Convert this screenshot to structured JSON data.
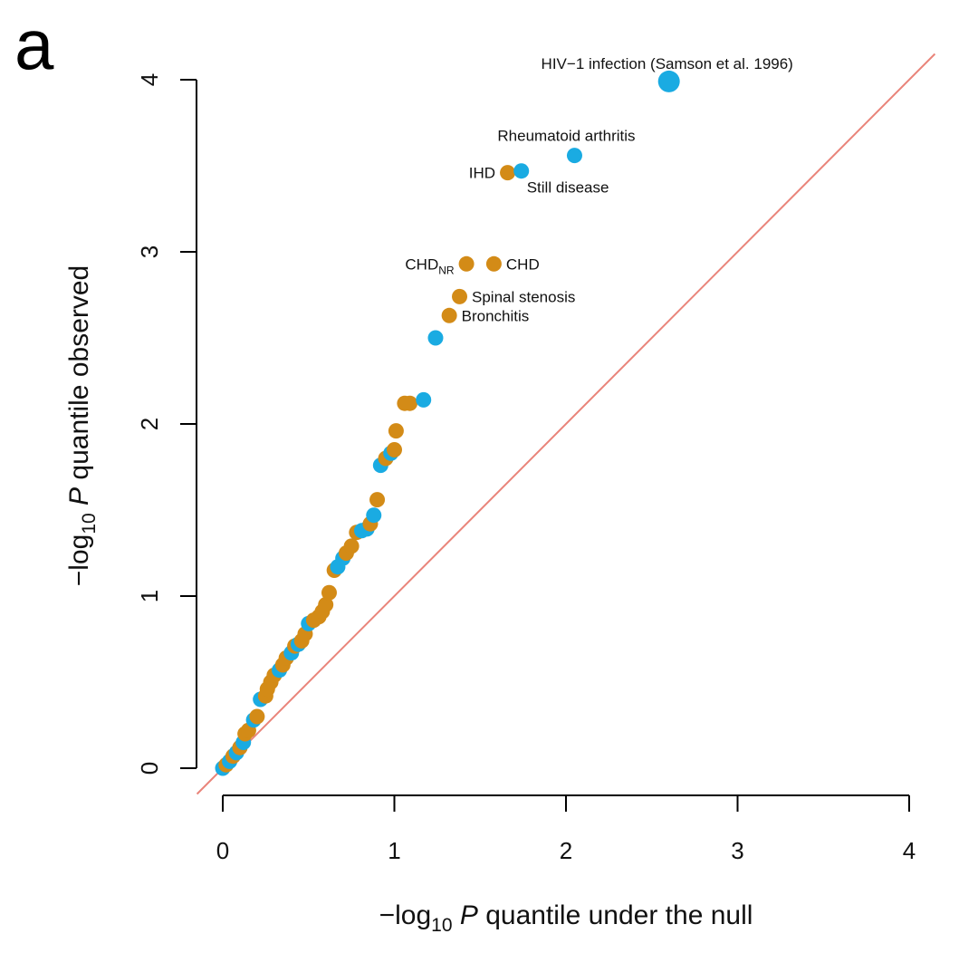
{
  "panel_label": "a",
  "chart_data": {
    "type": "scatter",
    "title": "",
    "xlabel": {
      "prefix": "−log",
      "sub": "10",
      "var": "P",
      "rest": "quantile under the null"
    },
    "ylabel": {
      "prefix": "−log",
      "sub": "10",
      "var": "P",
      "rest": "quantile observed"
    },
    "xlim": [
      0,
      4
    ],
    "ylim": [
      0,
      4
    ],
    "xticks": [
      0,
      1,
      2,
      3,
      4
    ],
    "yticks": [
      0,
      1,
      2,
      3,
      4
    ],
    "reference_line": {
      "type": "identity",
      "color": "#e9847a"
    },
    "colors": {
      "blue": "#1aabe2",
      "orange": "#d38b17"
    },
    "points": [
      {
        "x": 0.0,
        "y": 0.0,
        "c": "blue"
      },
      {
        "x": 0.02,
        "y": 0.02,
        "c": "orange"
      },
      {
        "x": 0.04,
        "y": 0.04,
        "c": "blue"
      },
      {
        "x": 0.06,
        "y": 0.07,
        "c": "orange"
      },
      {
        "x": 0.08,
        "y": 0.09,
        "c": "blue"
      },
      {
        "x": 0.1,
        "y": 0.12,
        "c": "orange"
      },
      {
        "x": 0.12,
        "y": 0.15,
        "c": "blue"
      },
      {
        "x": 0.13,
        "y": 0.2,
        "c": "orange"
      },
      {
        "x": 0.15,
        "y": 0.22,
        "c": "orange"
      },
      {
        "x": 0.18,
        "y": 0.28,
        "c": "blue"
      },
      {
        "x": 0.2,
        "y": 0.3,
        "c": "orange"
      },
      {
        "x": 0.22,
        "y": 0.4,
        "c": "blue"
      },
      {
        "x": 0.25,
        "y": 0.42,
        "c": "orange"
      },
      {
        "x": 0.26,
        "y": 0.46,
        "c": "orange"
      },
      {
        "x": 0.28,
        "y": 0.5,
        "c": "orange"
      },
      {
        "x": 0.3,
        "y": 0.54,
        "c": "orange"
      },
      {
        "x": 0.33,
        "y": 0.57,
        "c": "blue"
      },
      {
        "x": 0.35,
        "y": 0.6,
        "c": "orange"
      },
      {
        "x": 0.37,
        "y": 0.64,
        "c": "orange"
      },
      {
        "x": 0.4,
        "y": 0.67,
        "c": "blue"
      },
      {
        "x": 0.42,
        "y": 0.71,
        "c": "orange"
      },
      {
        "x": 0.44,
        "y": 0.72,
        "c": "blue"
      },
      {
        "x": 0.46,
        "y": 0.74,
        "c": "orange"
      },
      {
        "x": 0.48,
        "y": 0.78,
        "c": "orange"
      },
      {
        "x": 0.5,
        "y": 0.84,
        "c": "blue"
      },
      {
        "x": 0.53,
        "y": 0.86,
        "c": "orange"
      },
      {
        "x": 0.56,
        "y": 0.88,
        "c": "orange"
      },
      {
        "x": 0.58,
        "y": 0.91,
        "c": "orange"
      },
      {
        "x": 0.6,
        "y": 0.95,
        "c": "orange"
      },
      {
        "x": 0.62,
        "y": 1.02,
        "c": "orange"
      },
      {
        "x": 0.65,
        "y": 1.15,
        "c": "orange"
      },
      {
        "x": 0.67,
        "y": 1.17,
        "c": "blue"
      },
      {
        "x": 0.7,
        "y": 1.22,
        "c": "blue"
      },
      {
        "x": 0.72,
        "y": 1.25,
        "c": "orange"
      },
      {
        "x": 0.75,
        "y": 1.29,
        "c": "orange"
      },
      {
        "x": 0.78,
        "y": 1.37,
        "c": "orange"
      },
      {
        "x": 0.81,
        "y": 1.38,
        "c": "blue"
      },
      {
        "x": 0.84,
        "y": 1.39,
        "c": "blue"
      },
      {
        "x": 0.86,
        "y": 1.42,
        "c": "orange"
      },
      {
        "x": 0.88,
        "y": 1.47,
        "c": "blue"
      },
      {
        "x": 0.9,
        "y": 1.56,
        "c": "orange"
      },
      {
        "x": 0.92,
        "y": 1.76,
        "c": "blue"
      },
      {
        "x": 0.95,
        "y": 1.8,
        "c": "orange"
      },
      {
        "x": 0.98,
        "y": 1.83,
        "c": "blue"
      },
      {
        "x": 1.0,
        "y": 1.85,
        "c": "orange"
      },
      {
        "x": 1.01,
        "y": 1.96,
        "c": "orange"
      },
      {
        "x": 1.06,
        "y": 2.12,
        "c": "orange"
      },
      {
        "x": 1.09,
        "y": 2.12,
        "c": "orange"
      },
      {
        "x": 1.17,
        "y": 2.14,
        "c": "blue"
      },
      {
        "x": 1.24,
        "y": 2.5,
        "c": "blue"
      },
      {
        "x": 1.32,
        "y": 2.63,
        "c": "orange",
        "label": "Bronchitis",
        "lpos": "right"
      },
      {
        "x": 1.38,
        "y": 2.74,
        "c": "orange",
        "label": "Spinal stenosis",
        "lpos": "right"
      },
      {
        "x": 1.42,
        "y": 2.93,
        "c": "orange",
        "label": "CHD",
        "sub": "NR",
        "lpos": "left"
      },
      {
        "x": 1.58,
        "y": 2.93,
        "c": "orange",
        "label": "CHD",
        "lpos": "right"
      },
      {
        "x": 1.66,
        "y": 3.46,
        "c": "orange",
        "label": "IHD",
        "lpos": "left"
      },
      {
        "x": 1.74,
        "y": 3.47,
        "c": "blue",
        "label": "Still disease",
        "lpos": "below-right"
      },
      {
        "x": 2.05,
        "y": 3.56,
        "c": "blue",
        "label": "Rheumatoid arthritis",
        "lpos": "above"
      },
      {
        "x": 2.6,
        "y": 3.99,
        "c": "blue",
        "big": true,
        "label": "HIV−1 infection (Samson et al. 1996)",
        "lpos": "above"
      }
    ]
  }
}
